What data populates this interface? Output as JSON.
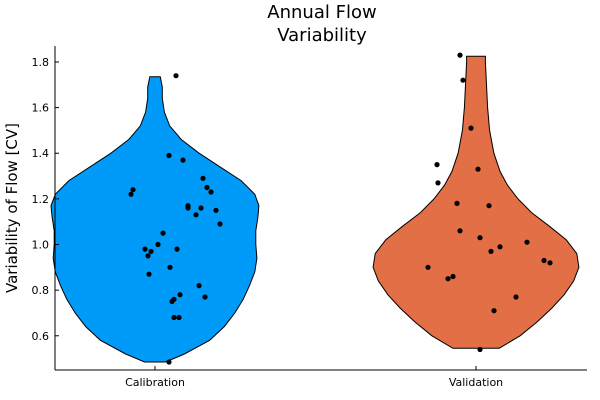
{
  "chart_data": {
    "type": "violin",
    "title": [
      "Annual Flow",
      "Variability"
    ],
    "xlabel": "",
    "ylabel": "Variability of Flow [CV]",
    "ylim": [
      0.45,
      1.87
    ],
    "yticks": [
      0.6,
      0.8,
      1.0,
      1.2,
      1.4,
      1.6,
      1.8
    ],
    "ytick_labels": [
      "0.6",
      "0.8",
      "1.0",
      "1.2",
      "1.4",
      "1.6",
      "1.8"
    ],
    "categories": [
      "Calibration",
      "Validation"
    ],
    "grid": false,
    "legend": "none",
    "series": [
      {
        "category": "Calibration",
        "color": "#009af9",
        "profile": [
          [
            0.485,
            0.1
          ],
          [
            0.52,
            0.28
          ],
          [
            0.58,
            0.52
          ],
          [
            0.64,
            0.66
          ],
          [
            0.7,
            0.76
          ],
          [
            0.76,
            0.84
          ],
          [
            0.82,
            0.9
          ],
          [
            0.88,
            0.95
          ],
          [
            0.94,
            0.97
          ],
          [
            1.0,
            0.96
          ],
          [
            1.06,
            0.96
          ],
          [
            1.12,
            0.98
          ],
          [
            1.17,
            0.99
          ],
          [
            1.22,
            0.95
          ],
          [
            1.28,
            0.82
          ],
          [
            1.34,
            0.62
          ],
          [
            1.4,
            0.42
          ],
          [
            1.46,
            0.25
          ],
          [
            1.52,
            0.14
          ],
          [
            1.58,
            0.09
          ],
          [
            1.64,
            0.07
          ],
          [
            1.69,
            0.07
          ],
          [
            1.735,
            0.05
          ]
        ],
        "points": [
          [
            -0.22,
            1.24
          ],
          [
            -0.24,
            1.22
          ],
          [
            -0.1,
            0.98
          ],
          [
            -0.07,
            0.95
          ],
          [
            -0.04,
            0.97
          ],
          [
            -0.06,
            0.87
          ],
          [
            0.03,
            1.0
          ],
          [
            0.08,
            1.05
          ],
          [
            0.14,
            1.39
          ],
          [
            0.15,
            0.9
          ],
          [
            0.17,
            0.75
          ],
          [
            0.19,
            0.76
          ],
          [
            0.19,
            0.68
          ],
          [
            0.22,
            0.98
          ],
          [
            0.24,
            0.68
          ],
          [
            0.25,
            0.78
          ],
          [
            0.21,
            1.74
          ],
          [
            0.28,
            1.37
          ],
          [
            0.33,
            1.17
          ],
          [
            0.33,
            1.16
          ],
          [
            0.41,
            1.13
          ],
          [
            0.44,
            0.82
          ],
          [
            0.46,
            1.16
          ],
          [
            0.48,
            1.29
          ],
          [
            0.5,
            0.77
          ],
          [
            0.52,
            1.25
          ],
          [
            0.56,
            1.23
          ],
          [
            0.61,
            1.15
          ],
          [
            0.65,
            1.09
          ],
          [
            0.14,
            0.485
          ]
        ]
      },
      {
        "category": "Validation",
        "color": "#e26f46",
        "profile": [
          [
            0.545,
            0.22
          ],
          [
            0.6,
            0.42
          ],
          [
            0.66,
            0.58
          ],
          [
            0.72,
            0.72
          ],
          [
            0.78,
            0.84
          ],
          [
            0.84,
            0.93
          ],
          [
            0.9,
            0.98
          ],
          [
            0.96,
            0.96
          ],
          [
            1.02,
            0.86
          ],
          [
            1.08,
            0.7
          ],
          [
            1.14,
            0.53
          ],
          [
            1.2,
            0.4
          ],
          [
            1.26,
            0.3
          ],
          [
            1.32,
            0.23
          ],
          [
            1.4,
            0.17
          ],
          [
            1.5,
            0.13
          ],
          [
            1.6,
            0.11
          ],
          [
            1.7,
            0.1
          ],
          [
            1.8,
            0.09
          ],
          [
            1.825,
            0.09
          ]
        ],
        "points": [
          [
            -0.48,
            0.9
          ],
          [
            -0.39,
            1.35
          ],
          [
            -0.38,
            1.27
          ],
          [
            -0.28,
            0.85
          ],
          [
            -0.23,
            0.86
          ],
          [
            -0.19,
            1.18
          ],
          [
            -0.16,
            1.06
          ],
          [
            -0.16,
            1.83
          ],
          [
            -0.13,
            1.72
          ],
          [
            -0.05,
            1.51
          ],
          [
            0.02,
            1.33
          ],
          [
            0.04,
            1.03
          ],
          [
            0.04,
            0.54
          ],
          [
            0.13,
            1.17
          ],
          [
            0.15,
            0.97
          ],
          [
            0.18,
            0.71
          ],
          [
            0.24,
            0.99
          ],
          [
            0.4,
            0.77
          ],
          [
            0.51,
            1.01
          ],
          [
            0.68,
            0.93
          ],
          [
            0.74,
            0.92
          ]
        ]
      }
    ]
  }
}
